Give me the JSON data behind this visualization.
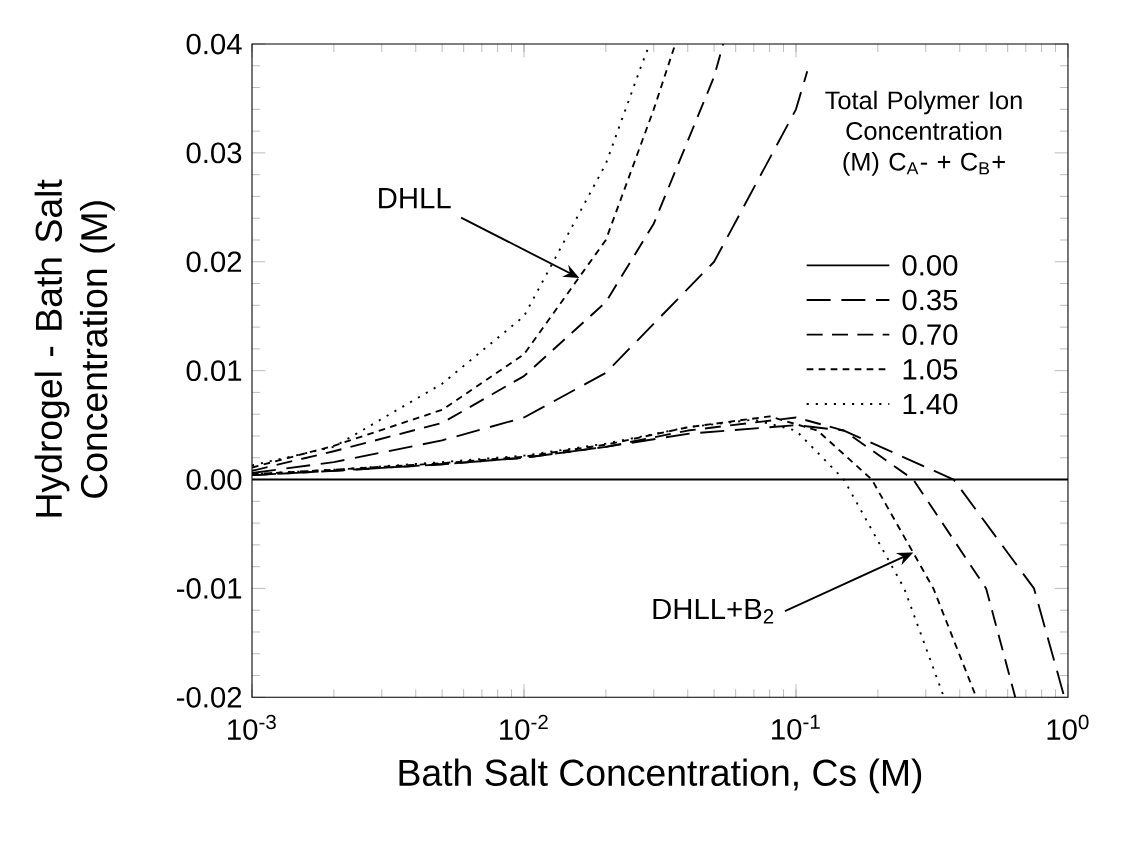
{
  "chart_data": {
    "type": "line",
    "xlabel": "Bath Salt Concentration, Cs (M)",
    "ylabel": "Hydrogel - Bath Salt Concentration (M)",
    "legend_title": "Total Polymer Ion Concentration (M) C$_{A}$- + C$_{B}$+",
    "log": "x",
    "legend": "top right",
    "xlim": [
      0.001,
      1
    ],
    "ylim": [
      -0.02,
      0.04
    ],
    "xticks": [
      {
        "value": 0.001,
        "label": "10$^{-3}$"
      },
      {
        "value": 0.01,
        "label": "10$^{-2}$"
      },
      {
        "value": 0.1,
        "label": "10$^{-1}$"
      },
      {
        "value": 1,
        "label": "10$^{0}$"
      }
    ],
    "yticks": [
      -0.02,
      -0.01,
      {
        "value": 0,
        "label": "0.00"
      },
      0.01,
      0.02,
      0.03,
      0.04
    ],
    "annotations": [
      {
        "text": "DHLL",
        "x": 0.016,
        "y": 0.0185
      },
      {
        "text": "DHLL+B$_{2}$",
        "x": 0.27,
        "y": -0.0067
      }
    ],
    "series": [
      {
        "name": "0.00",
        "color": "#000000",
        "line_style": "solid",
        "x": [
          0.001,
          1
        ],
        "values": [
          0,
          0
        ]
      },
      {
        "name": "0.35",
        "color": "#000000",
        "line_style": "dashed",
        "x": [
          0.001,
          0.002,
          0.005,
          0.01,
          0.02,
          0.05,
          0.1,
          0.11
        ],
        "values": [
          0.0006,
          0.0016,
          0.0036,
          0.0057,
          0.0098,
          0.02,
          0.034,
          0.0375
        ]
      },
      {
        "name": "0.70",
        "color": "#000000",
        "line_style": "dashed",
        "x": [
          0.001,
          0.002,
          0.005,
          0.01,
          0.02,
          0.03,
          0.05,
          0.054
        ],
        "values": [
          0.0008,
          0.0026,
          0.0052,
          0.0095,
          0.0163,
          0.0235,
          0.037,
          0.04
        ]
      },
      {
        "name": "1.05",
        "color": "#000000",
        "line_style": "dashed",
        "x": [
          0.001,
          0.002,
          0.005,
          0.01,
          0.02,
          0.03,
          0.036
        ],
        "values": [
          0.0011,
          0.0031,
          0.0064,
          0.0115,
          0.022,
          0.034,
          0.04
        ]
      },
      {
        "name": "1.40",
        "color": "#000000",
        "line_style": "dotted",
        "x": [
          0.001,
          0.002,
          0.005,
          0.01,
          0.02,
          0.027,
          0.029
        ],
        "values": [
          0.0013,
          0.003,
          0.0088,
          0.015,
          0.029,
          0.038,
          0.04
        ]
      },
      {
        "color": "#000000",
        "line_style": "dashed",
        "x": [
          0.001,
          0.002,
          0.005,
          0.01,
          0.02,
          0.04,
          0.1,
          0.15,
          0.38,
          0.75,
          0.97
        ],
        "values": [
          0.0004,
          0.0008,
          0.0014,
          0.002,
          0.003,
          0.0042,
          0.005,
          0.0045,
          0.0,
          -0.01,
          -0.02
        ]
      },
      {
        "color": "#000000",
        "line_style": "dashed",
        "x": [
          0.001,
          0.002,
          0.005,
          0.01,
          0.02,
          0.04,
          0.1,
          0.15,
          0.27,
          0.5,
          0.64
        ],
        "values": [
          0.0004,
          0.0008,
          0.0014,
          0.002,
          0.003,
          0.0045,
          0.0057,
          0.0045,
          0.0,
          -0.01,
          -0.02
        ]
      },
      {
        "color": "#000000",
        "line_style": "dashed",
        "x": [
          0.001,
          0.002,
          0.005,
          0.01,
          0.02,
          0.04,
          0.08,
          0.12,
          0.19,
          0.32,
          0.46
        ],
        "values": [
          0.0005,
          0.0009,
          0.0015,
          0.0021,
          0.0032,
          0.0048,
          0.0058,
          0.0045,
          0.0,
          -0.01,
          -0.02
        ]
      },
      {
        "color": "#000000",
        "line_style": "dotted",
        "x": [
          0.001,
          0.002,
          0.005,
          0.01,
          0.02,
          0.04,
          0.07,
          0.1,
          0.15,
          0.25,
          0.35
        ],
        "values": [
          0.0005,
          0.0009,
          0.0016,
          0.0022,
          0.0033,
          0.0048,
          0.0055,
          0.0045,
          0.0,
          -0.01,
          -0.02
        ]
      }
    ]
  }
}
